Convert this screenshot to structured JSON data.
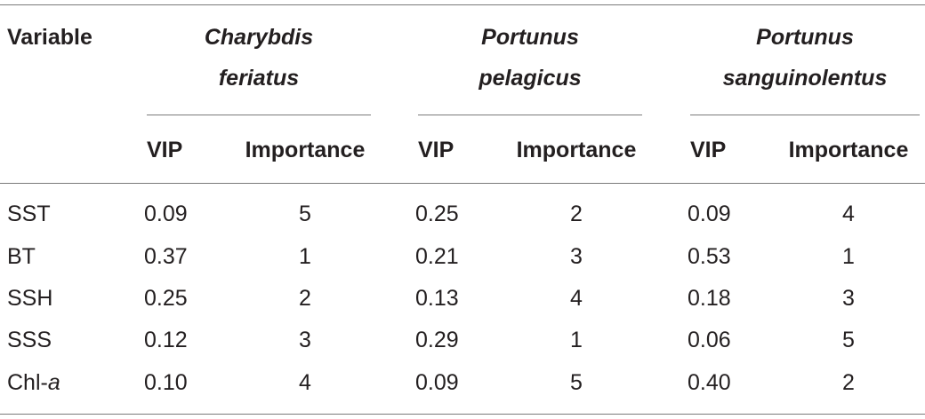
{
  "table": {
    "variable_header": "Variable",
    "species": [
      {
        "line1": "Charybdis",
        "line2": "feriatus"
      },
      {
        "line1": "Portunus",
        "line2": "pelagicus"
      },
      {
        "line1": "Portunus",
        "line2": "sanguinolentus"
      }
    ],
    "sub_headers": {
      "vip": "VIP",
      "importance": "Importance"
    },
    "rows": [
      {
        "variable": "SST",
        "italic_suffix": "",
        "values": [
          "0.09",
          "5",
          "0.25",
          "2",
          "0.09",
          "4"
        ]
      },
      {
        "variable": "BT",
        "italic_suffix": "",
        "values": [
          "0.37",
          "1",
          "0.21",
          "3",
          "0.53",
          "1"
        ]
      },
      {
        "variable": "SSH",
        "italic_suffix": "",
        "values": [
          "0.25",
          "2",
          "0.13",
          "4",
          "0.18",
          "3"
        ]
      },
      {
        "variable": "SSS",
        "italic_suffix": "",
        "values": [
          "0.12",
          "3",
          "0.29",
          "1",
          "0.06",
          "5"
        ]
      },
      {
        "variable": "Chl-",
        "italic_suffix": "a",
        "values": [
          "0.10",
          "4",
          "0.09",
          "5",
          "0.40",
          "2"
        ]
      }
    ]
  }
}
